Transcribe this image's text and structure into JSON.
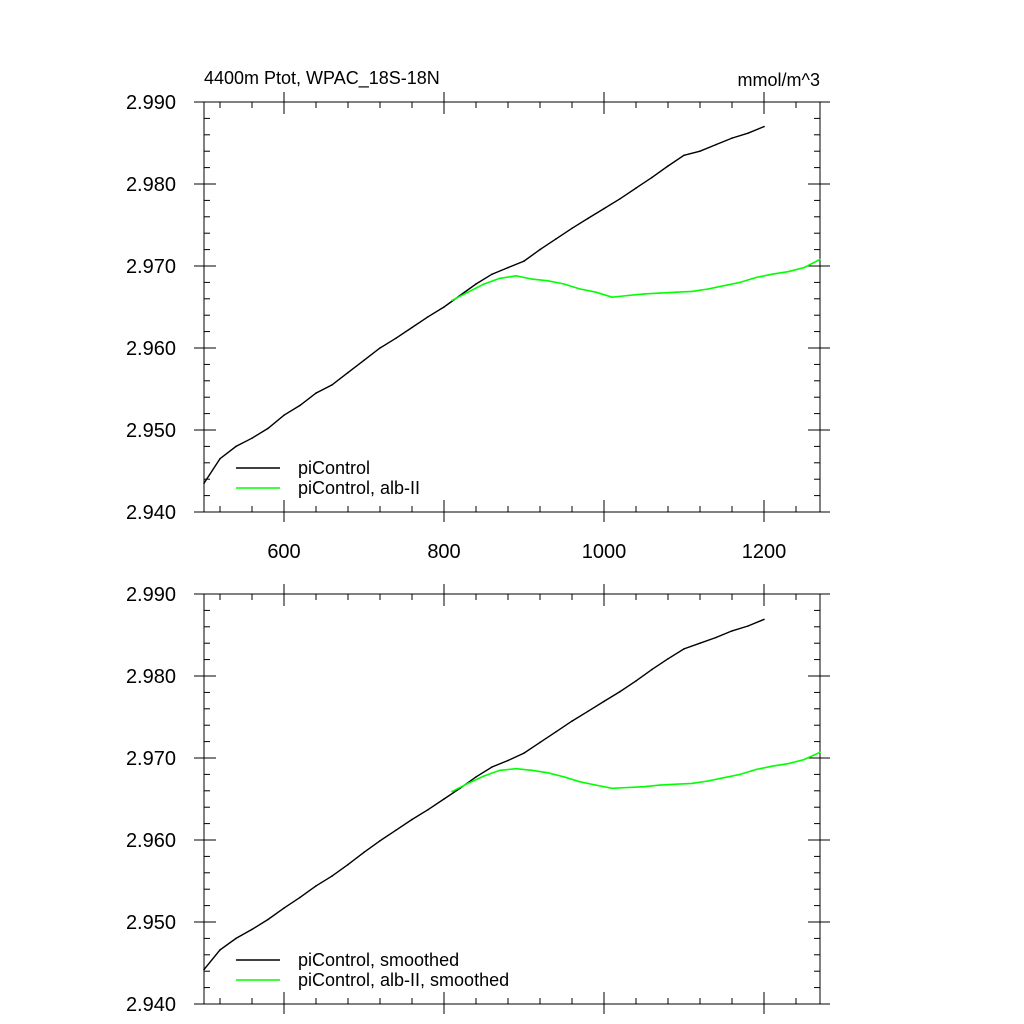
{
  "chart_data": [
    {
      "type": "line",
      "title": "4400m Ptot, WPAC_18S-18N",
      "units": "mmol/m^3",
      "xlim": [
        500,
        1270
      ],
      "ylim": [
        2.94,
        2.99
      ],
      "x_ticks": [
        600,
        800,
        1000,
        1200
      ],
      "x_tick_labels": [
        "600",
        "800",
        "1000",
        "1200"
      ],
      "y_ticks": [
        2.94,
        2.95,
        2.96,
        2.97,
        2.98,
        2.99
      ],
      "y_tick_labels": [
        "2.940",
        "2.950",
        "2.960",
        "2.970",
        "2.980",
        "2.990"
      ],
      "legend_position": "bottom-left",
      "series": [
        {
          "name": "piControl",
          "color": "#000000",
          "x": [
            500,
            520,
            540,
            560,
            580,
            600,
            620,
            640,
            660,
            680,
            700,
            720,
            740,
            760,
            780,
            800,
            820,
            840,
            860,
            880,
            900,
            920,
            940,
            960,
            980,
            1000,
            1020,
            1040,
            1060,
            1080,
            1100,
            1120,
            1140,
            1160,
            1180,
            1200
          ],
          "y": [
            2.9435,
            2.9465,
            2.948,
            2.949,
            2.9502,
            2.9518,
            2.953,
            2.9545,
            2.9555,
            2.957,
            2.9585,
            2.96,
            2.9612,
            2.9625,
            2.9638,
            2.965,
            2.9664,
            2.9678,
            2.969,
            2.9698,
            2.9706,
            2.972,
            2.9733,
            2.9746,
            2.9758,
            2.977,
            2.9782,
            2.9795,
            2.9808,
            2.9822,
            2.9835,
            2.984,
            2.9848,
            2.9856,
            2.9862,
            2.987
          ]
        },
        {
          "name": "piControl, alb-II",
          "color": "#00ff00",
          "x": [
            810,
            830,
            850,
            870,
            890,
            910,
            930,
            950,
            970,
            990,
            1010,
            1030,
            1050,
            1070,
            1090,
            1110,
            1130,
            1150,
            1170,
            1190,
            1210,
            1230,
            1250,
            1270
          ],
          "y": [
            2.9658,
            2.9668,
            2.9678,
            2.9685,
            2.9688,
            2.9684,
            2.9682,
            2.9678,
            2.9672,
            2.9668,
            2.9662,
            2.9664,
            2.9666,
            2.9667,
            2.9668,
            2.9669,
            2.9672,
            2.9676,
            2.968,
            2.9686,
            2.969,
            2.9693,
            2.9698,
            2.9708
          ]
        }
      ]
    },
    {
      "type": "line",
      "xlim": [
        500,
        1270
      ],
      "ylim": [
        2.94,
        2.99
      ],
      "x_ticks": [
        600,
        800,
        1000,
        1200
      ],
      "y_ticks": [
        2.94,
        2.95,
        2.96,
        2.97,
        2.98,
        2.99
      ],
      "y_tick_labels": [
        "2.940",
        "2.950",
        "2.960",
        "2.970",
        "2.980",
        "2.990"
      ],
      "legend_position": "bottom-left",
      "series": [
        {
          "name": "piControl, smoothed",
          "color": "#000000",
          "x": [
            500,
            520,
            540,
            560,
            580,
            600,
            620,
            640,
            660,
            680,
            700,
            720,
            740,
            760,
            780,
            800,
            820,
            840,
            860,
            880,
            900,
            920,
            940,
            960,
            980,
            1000,
            1020,
            1040,
            1060,
            1080,
            1100,
            1120,
            1140,
            1160,
            1180,
            1200
          ],
          "y": [
            2.9442,
            2.9466,
            2.948,
            2.9491,
            2.9503,
            2.9517,
            2.953,
            2.9544,
            2.9556,
            2.957,
            2.9585,
            2.9599,
            2.9612,
            2.9625,
            2.9637,
            2.965,
            2.9663,
            2.9677,
            2.9689,
            2.9697,
            2.9706,
            2.9719,
            2.9732,
            2.9745,
            2.9757,
            2.9769,
            2.9781,
            2.9794,
            2.9808,
            2.9821,
            2.9833,
            2.984,
            2.9847,
            2.9855,
            2.9861,
            2.9869
          ]
        },
        {
          "name": "piControl, alb-II, smoothed",
          "color": "#00ff00",
          "x": [
            810,
            830,
            850,
            870,
            890,
            910,
            930,
            950,
            970,
            990,
            1010,
            1030,
            1050,
            1070,
            1090,
            1110,
            1130,
            1150,
            1170,
            1190,
            1210,
            1230,
            1250,
            1270
          ],
          "y": [
            2.9659,
            2.9669,
            2.9678,
            2.9685,
            2.9687,
            2.9685,
            2.9682,
            2.9677,
            2.9671,
            2.9667,
            2.9663,
            2.9664,
            2.9665,
            2.9667,
            2.9668,
            2.9669,
            2.9672,
            2.9676,
            2.968,
            2.9686,
            2.969,
            2.9693,
            2.9698,
            2.9707
          ]
        }
      ]
    }
  ]
}
